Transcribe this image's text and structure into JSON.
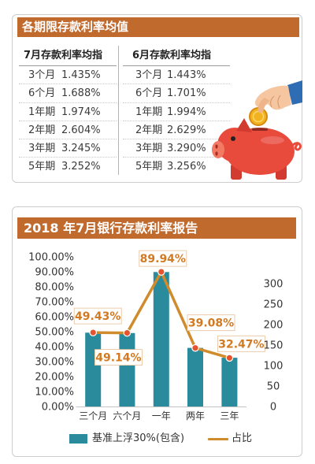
{
  "colors": {
    "banner": "#c06a2e",
    "bar": "#2a8b9c",
    "line": "#d08b2c",
    "point": "#e4552f",
    "data_label": "#d27a23",
    "pig": "#e84a3c"
  },
  "rate_table": {
    "title": "各期限存款利率均值",
    "columns": [
      {
        "header": "7月存款利率均指",
        "rows": [
          {
            "term": "3个月",
            "rate": "1.435%"
          },
          {
            "term": "6个月",
            "rate": "1.688%"
          },
          {
            "term": "1年期",
            "rate": "1.974%"
          },
          {
            "term": "2年期",
            "rate": "2.604%"
          },
          {
            "term": "3年期",
            "rate": "3.245%"
          },
          {
            "term": "5年期",
            "rate": "3.252%"
          }
        ]
      },
      {
        "header": "6月存款利率均指",
        "rows": [
          {
            "term": "3个月",
            "rate": "1.443%"
          },
          {
            "term": "6个月",
            "rate": "1.701%"
          },
          {
            "term": "1年期",
            "rate": "1.994%"
          },
          {
            "term": "2年期",
            "rate": "2.629%"
          },
          {
            "term": "3年期",
            "rate": "3.290%"
          },
          {
            "term": "5年期",
            "rate": "3.256%"
          }
        ]
      }
    ]
  },
  "illustration": {
    "icons": [
      "hand-icon",
      "coin-icon",
      "piggy-bank-icon"
    ]
  },
  "chart_data": {
    "type": "bar",
    "title": "2018 年7月银行存款利率报告",
    "categories": [
      "三个月",
      "六个月",
      "一年",
      "两年",
      "三年"
    ],
    "series": [
      {
        "name": "基准上浮30%(包含)",
        "type": "bar",
        "axis": "right",
        "values": [
          180,
          179,
          328,
          143,
          119
        ]
      },
      {
        "name": "占比",
        "type": "line",
        "axis": "left",
        "values": [
          49.43,
          49.14,
          89.94,
          39.08,
          32.47
        ],
        "labels": [
          "49.43%",
          "49.14%",
          "89.94%",
          "39.08%",
          "32.47%"
        ]
      }
    ],
    "y_left": {
      "range": [
        0,
        100
      ],
      "ticks": [
        {
          "value": 0,
          "label": "0.00%"
        },
        {
          "value": 10,
          "label": "10.00%"
        },
        {
          "value": 20,
          "label": "20.00%"
        },
        {
          "value": 30,
          "label": "30.00%"
        },
        {
          "value": 40,
          "label": "40.00%"
        },
        {
          "value": 50,
          "label": "50.00%"
        },
        {
          "value": 60,
          "label": "60.00%"
        },
        {
          "value": 70,
          "label": "70.00%"
        },
        {
          "value": 80,
          "label": "80.00%"
        },
        {
          "value": 90,
          "label": "90.00%"
        },
        {
          "value": 100,
          "label": "100.00%"
        }
      ]
    },
    "y_right": {
      "range": [
        0,
        365
      ],
      "ticks": [
        {
          "value": 0,
          "label": "0"
        },
        {
          "value": 50,
          "label": "50"
        },
        {
          "value": 100,
          "label": "100"
        },
        {
          "value": 150,
          "label": "150"
        },
        {
          "value": 200,
          "label": "200"
        },
        {
          "value": 250,
          "label": "250"
        },
        {
          "value": 300,
          "label": "300"
        }
      ]
    },
    "grid": false,
    "legend": "bottom"
  }
}
